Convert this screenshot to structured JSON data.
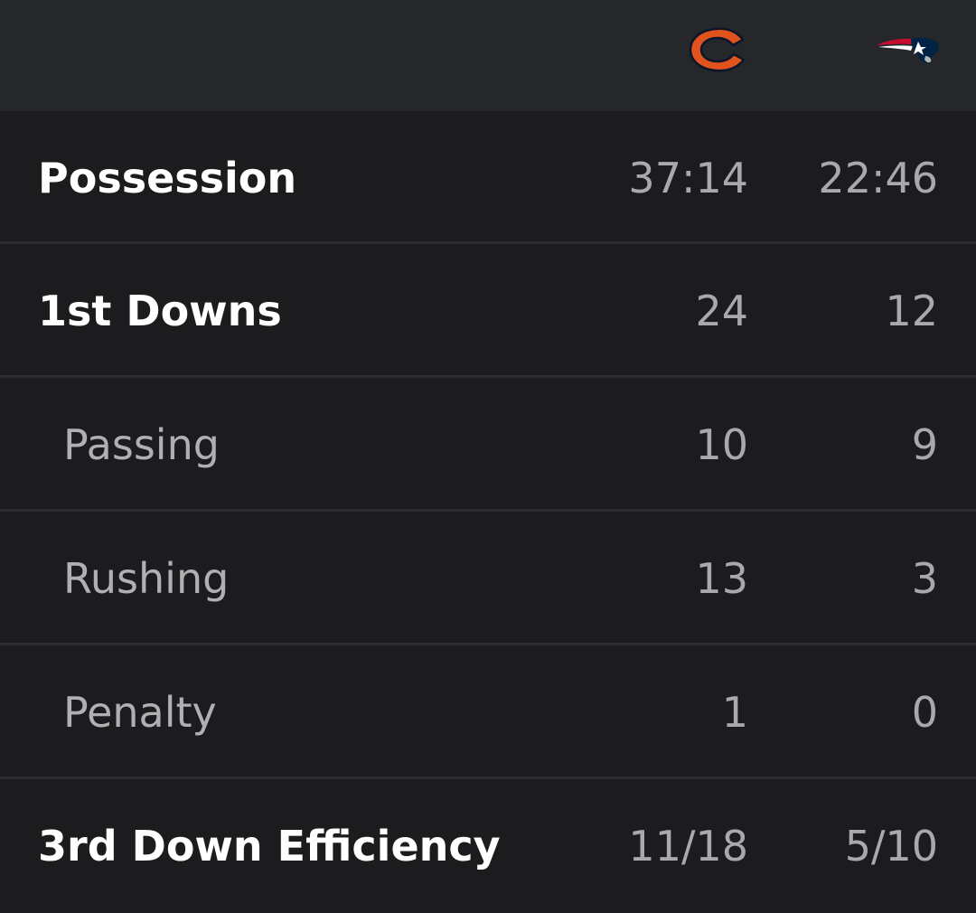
{
  "header": {
    "home_team_icon": "bears-c-logo-icon",
    "away_team_icon": "patriots-flying-elvis-logo-icon",
    "home_color": "#e1531c",
    "home_dark": "#0b162a",
    "away_red": "#c60c30",
    "away_navy": "#002244",
    "away_silver": "#b0b7bc"
  },
  "stats": [
    {
      "label": "Possession",
      "home": "37:14",
      "away": "22:46",
      "style": "main"
    },
    {
      "label": "1st Downs",
      "home": "24",
      "away": "12",
      "style": "main"
    },
    {
      "label": "Passing",
      "home": "10",
      "away": "9",
      "style": "sub"
    },
    {
      "label": "Rushing",
      "home": "13",
      "away": "3",
      "style": "sub"
    },
    {
      "label": "Penalty",
      "home": "1",
      "away": "0",
      "style": "sub"
    },
    {
      "label": "3rd Down Efficiency",
      "home": "11/18",
      "away": "5/10",
      "style": "main"
    }
  ]
}
